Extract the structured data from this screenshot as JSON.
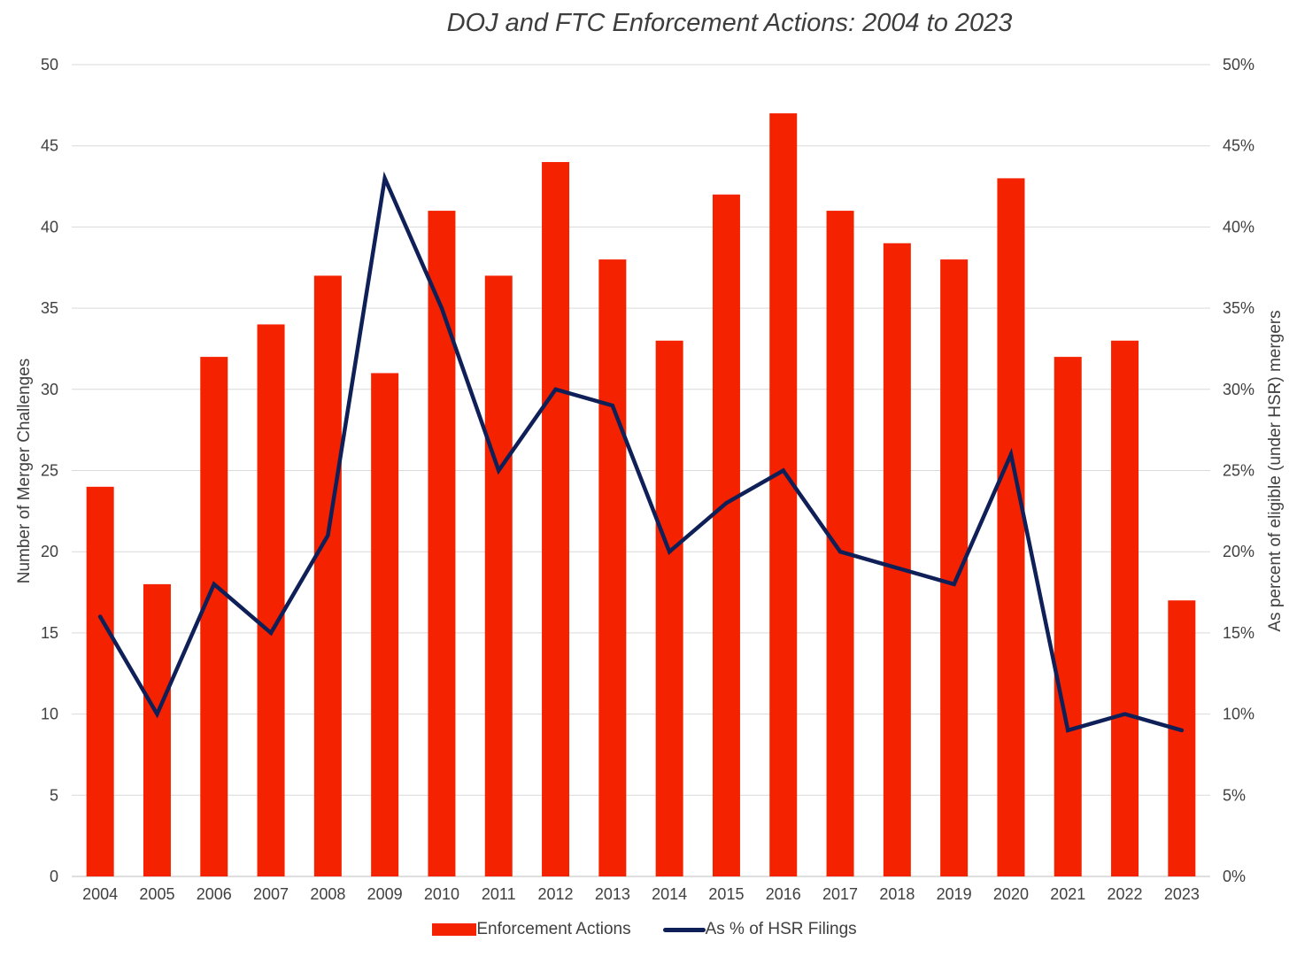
{
  "chart_data": {
    "type": "bar",
    "title": "DOJ and FTC Enforcement Actions: 2004 to 2023",
    "categories": [
      "2004",
      "2005",
      "2006",
      "2007",
      "2008",
      "2009",
      "2010",
      "2011",
      "2012",
      "2013",
      "2014",
      "2015",
      "2016",
      "2017",
      "2018",
      "2019",
      "2020",
      "2021",
      "2022",
      "2023"
    ],
    "series": [
      {
        "name": "Enforcement Actions",
        "type": "bar",
        "axis": "left",
        "color": "#f52200",
        "values": [
          24,
          18,
          32,
          34,
          37,
          31,
          41,
          37,
          44,
          38,
          33,
          42,
          47,
          41,
          39,
          38,
          43,
          32,
          33,
          17
        ]
      },
      {
        "name": "As % of HSR Filings",
        "type": "line",
        "axis": "right",
        "color": "#0f1f57",
        "values": [
          16,
          10,
          18,
          15,
          21,
          43,
          35,
          25,
          30,
          29,
          20,
          23,
          25,
          20,
          19,
          18,
          26,
          9,
          10,
          9
        ]
      }
    ],
    "ylabel": "Number of Merger Challenges",
    "ylabel_right": "As percent of eligible (under HSR) mergers",
    "ylim": [
      0,
      50
    ],
    "ylim_right": [
      0,
      50
    ],
    "yticks": [
      "0",
      "5",
      "10",
      "15",
      "20",
      "25",
      "30",
      "35",
      "40",
      "45",
      "50"
    ],
    "yticks_right": [
      "0%",
      "5%",
      "10%",
      "15%",
      "20%",
      "25%",
      "30%",
      "35%",
      "40%",
      "45%",
      "50%"
    ],
    "grid": true,
    "legend_placement": "bottom"
  }
}
